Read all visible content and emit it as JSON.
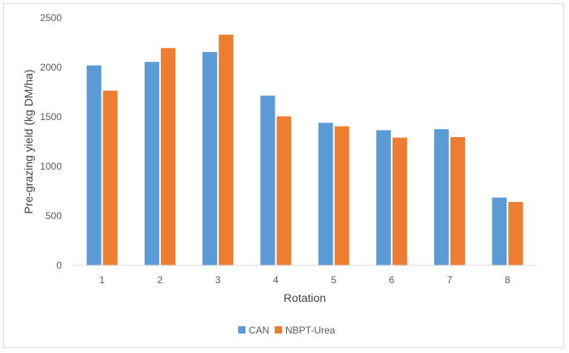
{
  "chart_data": {
    "type": "bar",
    "categories": [
      "1",
      "2",
      "3",
      "4",
      "5",
      "6",
      "7",
      "8"
    ],
    "series": [
      {
        "name": "CAN",
        "color": "#5b9bd5",
        "values": [
          2020,
          2055,
          2155,
          1715,
          1440,
          1365,
          1375,
          685
        ]
      },
      {
        "name": "NBPT-Urea",
        "color": "#ed7d31",
        "values": [
          1765,
          2195,
          2330,
          1505,
          1405,
          1290,
          1295,
          640
        ]
      }
    ],
    "xlabel": "Rotation",
    "ylabel": "Pre-grazing yield (kg DM/ha)",
    "ylim": [
      0,
      2500
    ],
    "yticks": [
      0,
      500,
      1000,
      1500,
      2000,
      2500
    ],
    "grid": false,
    "legend_position": "bottom"
  }
}
